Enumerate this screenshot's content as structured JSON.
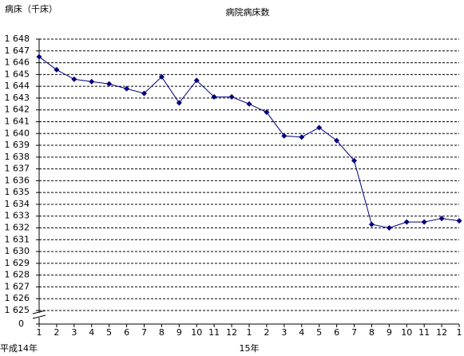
{
  "chart_data": {
    "type": "line",
    "title": "病院病床数",
    "y_label": "病床（千床）",
    "categories": [
      "1",
      "2",
      "3",
      "4",
      "5",
      "6",
      "7",
      "8",
      "9",
      "10",
      "11",
      "12",
      "1",
      "2",
      "3",
      "4",
      "5",
      "6",
      "7",
      "8",
      "9",
      "10",
      "11",
      "12",
      "1"
    ],
    "x_groups": [
      {
        "label": "平成14年",
        "start": 0
      },
      {
        "label": "15年",
        "start": 12
      }
    ],
    "series": [
      {
        "name": "病院病床数",
        "color": "#000080",
        "values": [
          1646.5,
          1645.4,
          1644.6,
          1644.4,
          1644.2,
          1643.8,
          1643.4,
          1644.8,
          1642.6,
          1644.5,
          1643.1,
          1643.1,
          1642.5,
          1641.8,
          1639.8,
          1639.7,
          1640.5,
          1639.4,
          1637.7,
          1632.3,
          1632.0,
          1632.5,
          1632.5,
          1632.8,
          1632.6
        ]
      }
    ],
    "ylim": [
      1625,
      1648
    ],
    "yticks": [
      {
        "value": 1625,
        "label": "1 625"
      },
      {
        "value": 1626,
        "label": "1 626"
      },
      {
        "value": 1627,
        "label": "1 627"
      },
      {
        "value": 1628,
        "label": "1 628"
      },
      {
        "value": 1629,
        "label": "1 629"
      },
      {
        "value": 1630,
        "label": "1 630"
      },
      {
        "value": 1631,
        "label": "1 631"
      },
      {
        "value": 1632,
        "label": "1 632"
      },
      {
        "value": 1633,
        "label": "1 633"
      },
      {
        "value": 1634,
        "label": "1 634"
      },
      {
        "value": 1635,
        "label": "1 635"
      },
      {
        "value": 1636,
        "label": "1 636"
      },
      {
        "value": 1637,
        "label": "1 637"
      },
      {
        "value": 1638,
        "label": "1 638"
      },
      {
        "value": 1639,
        "label": "1 639"
      },
      {
        "value": 1640,
        "label": "1 640"
      },
      {
        "value": 1641,
        "label": "1 641"
      },
      {
        "value": 1642,
        "label": "1 642"
      },
      {
        "value": 1643,
        "label": "1 643"
      },
      {
        "value": 1644,
        "label": "1 644"
      },
      {
        "value": 1645,
        "label": "1 645"
      },
      {
        "value": 1646,
        "label": "1 646"
      },
      {
        "value": 1647,
        "label": "1 647"
      },
      {
        "value": 1648,
        "label": "1 648"
      }
    ],
    "axis_break_tick": 0,
    "grid": true
  }
}
